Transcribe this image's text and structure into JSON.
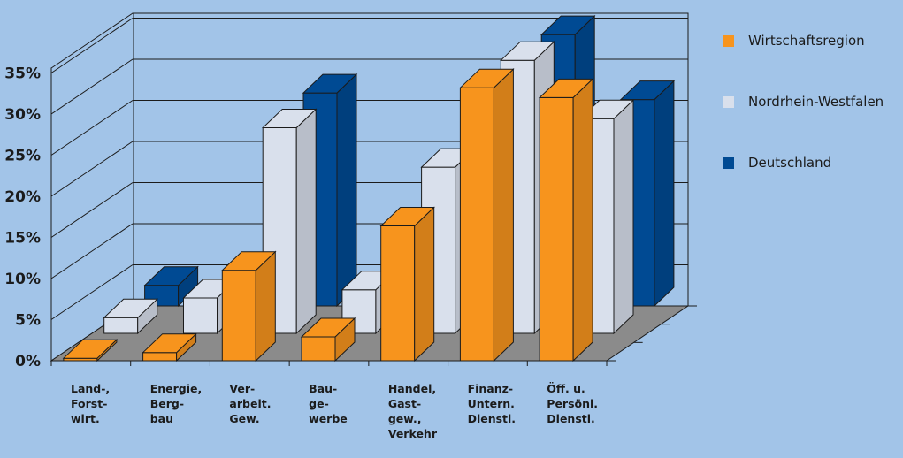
{
  "chart_data": {
    "type": "bar",
    "categories": [
      [
        "Land-,",
        "Forst-",
        "wirt."
      ],
      [
        "Energie,",
        "Berg-",
        "bau"
      ],
      [
        "Ver-",
        "arbeit.",
        "Gew."
      ],
      [
        "Bau-",
        "ge-",
        "werbe"
      ],
      [
        "Handel,",
        "Gast-",
        "gew.,",
        "Verkehr"
      ],
      [
        "Finanz-",
        "Untern.",
        "Dienstl."
      ],
      [
        "Öff. u.",
        "Persönl.",
        "Dienstl."
      ]
    ],
    "series": [
      {
        "name": "Wirtschaftsregion",
        "color": "#f7941d",
        "values": [
          0.3,
          1.0,
          11.0,
          2.9,
          16.4,
          33.2,
          32.0
        ]
      },
      {
        "name": "Nordrhein-Westfalen",
        "color": "#d9e0ec",
        "values": [
          1.9,
          4.3,
          25.0,
          5.3,
          20.2,
          33.2,
          26.1
        ]
      },
      {
        "name": "Deutschland",
        "color": "#004a93",
        "values": [
          2.5,
          4.2,
          25.9,
          4.2,
          19.0,
          33.0,
          25.1
        ]
      }
    ],
    "y_ticks": [
      "0%",
      "5%",
      "10%",
      "15%",
      "20%",
      "25%",
      "30%",
      "35%"
    ],
    "ylim": [
      0,
      35
    ],
    "grid": true,
    "legend_position": "right",
    "three_d": true
  }
}
